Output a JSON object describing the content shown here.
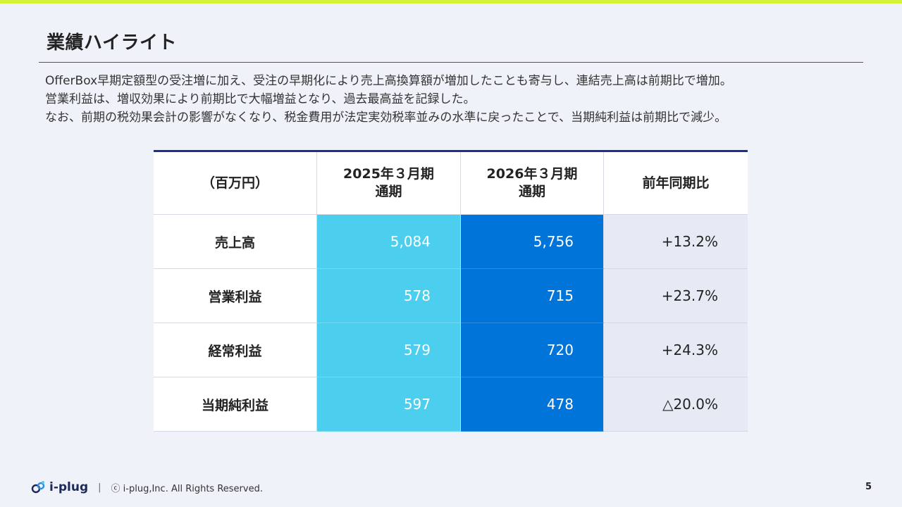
{
  "title": "業績ハイライト",
  "summary": [
    "OfferBox早期定額型の受注増に加え、受注の早期化により売上高換算額が増加したことも寄与し、連結売上高は前期比で増加。",
    "営業利益は、増収効果により前期比で大幅増益となり、過去最高益を記録した。",
    "なお、前期の税効果会計の影響がなくなり、税金費用が法定実効税率並みの水準に戻ったことで、当期純利益は前期比で減少。"
  ],
  "table": {
    "header": {
      "unit": "（百万円）",
      "col1_line1": "2025年３月期",
      "col1_line2": "通期",
      "col2_line1": "2026年３月期",
      "col2_line2": "通期",
      "col3": "前年同期比"
    },
    "rows": [
      {
        "label": "売上高",
        "fy2025": "5,084",
        "fy2026": "5,756",
        "yoy": "+13.2%"
      },
      {
        "label": "営業利益",
        "fy2025": "578",
        "fy2026": "715",
        "yoy": "+23.7%"
      },
      {
        "label": "経常利益",
        "fy2025": "579",
        "fy2026": "720",
        "yoy": "+24.3%"
      },
      {
        "label": "当期純利益",
        "fy2025": "597",
        "fy2026": "478",
        "yoy": "△20.0%"
      }
    ]
  },
  "colors": {
    "accent_top": "#d6f13a",
    "fy2025": "#4ccfee",
    "fy2026": "#0074d9",
    "table_rule": "#1e2f8f"
  },
  "footer": {
    "logo_text": "i-plug",
    "separator": "|",
    "copyright": "ⓒ i-plug,Inc. All Rights Reserved.",
    "page_number": "5"
  }
}
